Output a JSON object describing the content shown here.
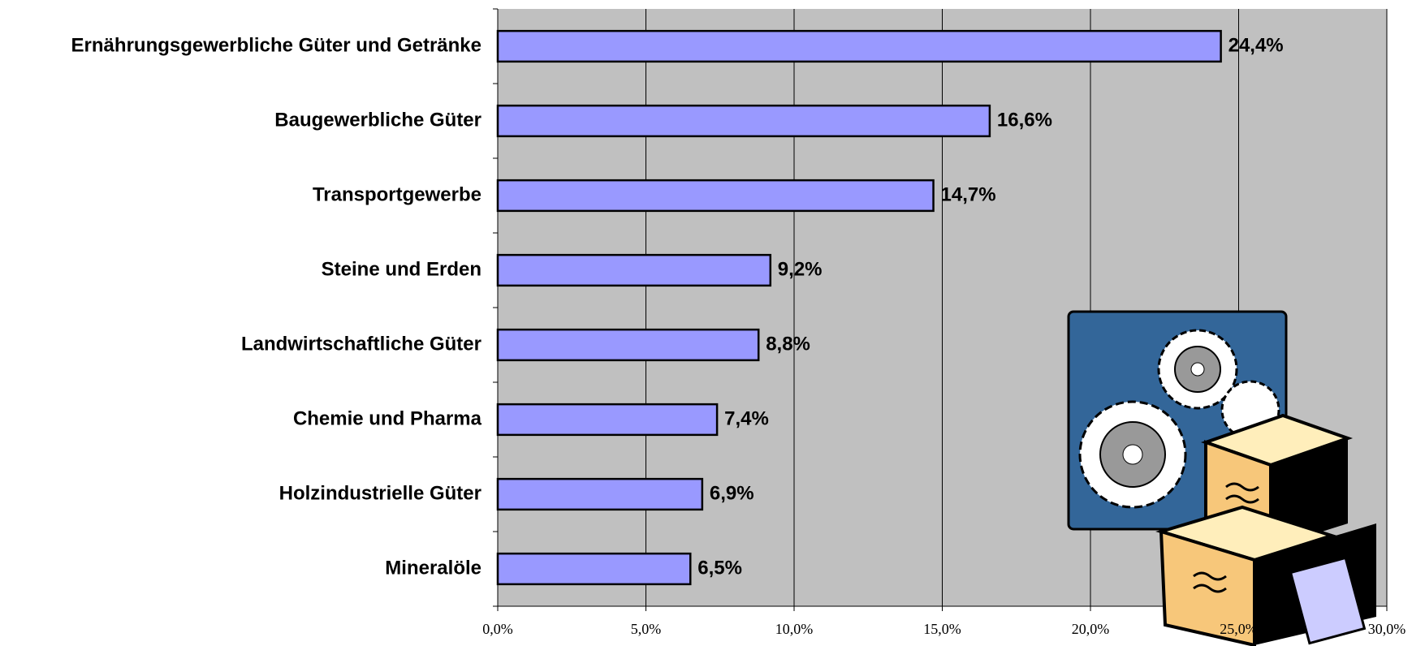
{
  "chart_data": {
    "type": "barh",
    "categories": [
      "Ernährungsgewerbliche Güter und Getränke",
      "Baugewerbliche Güter",
      "Transportgewerbe",
      "Steine und Erden",
      "Landwirtschaftliche Güter",
      "Chemie und Pharma",
      "Holzindustrielle Güter",
      "Mineralöle"
    ],
    "values": [
      24.4,
      16.6,
      14.7,
      9.2,
      8.8,
      7.4,
      6.9,
      6.5
    ],
    "value_labels": [
      "24,4%",
      "16,6%",
      "14,7%",
      "9,2%",
      "8,8%",
      "7,4%",
      "6,9%",
      "6,5%"
    ],
    "color": "#9999ff",
    "xlim": [
      0,
      30
    ],
    "xticks": [
      {
        "value": 0,
        "label": "0,0%"
      },
      {
        "value": 5,
        "label": "5,0%"
      },
      {
        "value": 10,
        "label": "10,0%"
      },
      {
        "value": 15,
        "label": "15,0%"
      },
      {
        "value": 20,
        "label": "20,0%"
      },
      {
        "value": 25,
        "label": "25,0%"
      },
      {
        "value": 30,
        "label": "30,0%"
      }
    ],
    "grid": true
  }
}
